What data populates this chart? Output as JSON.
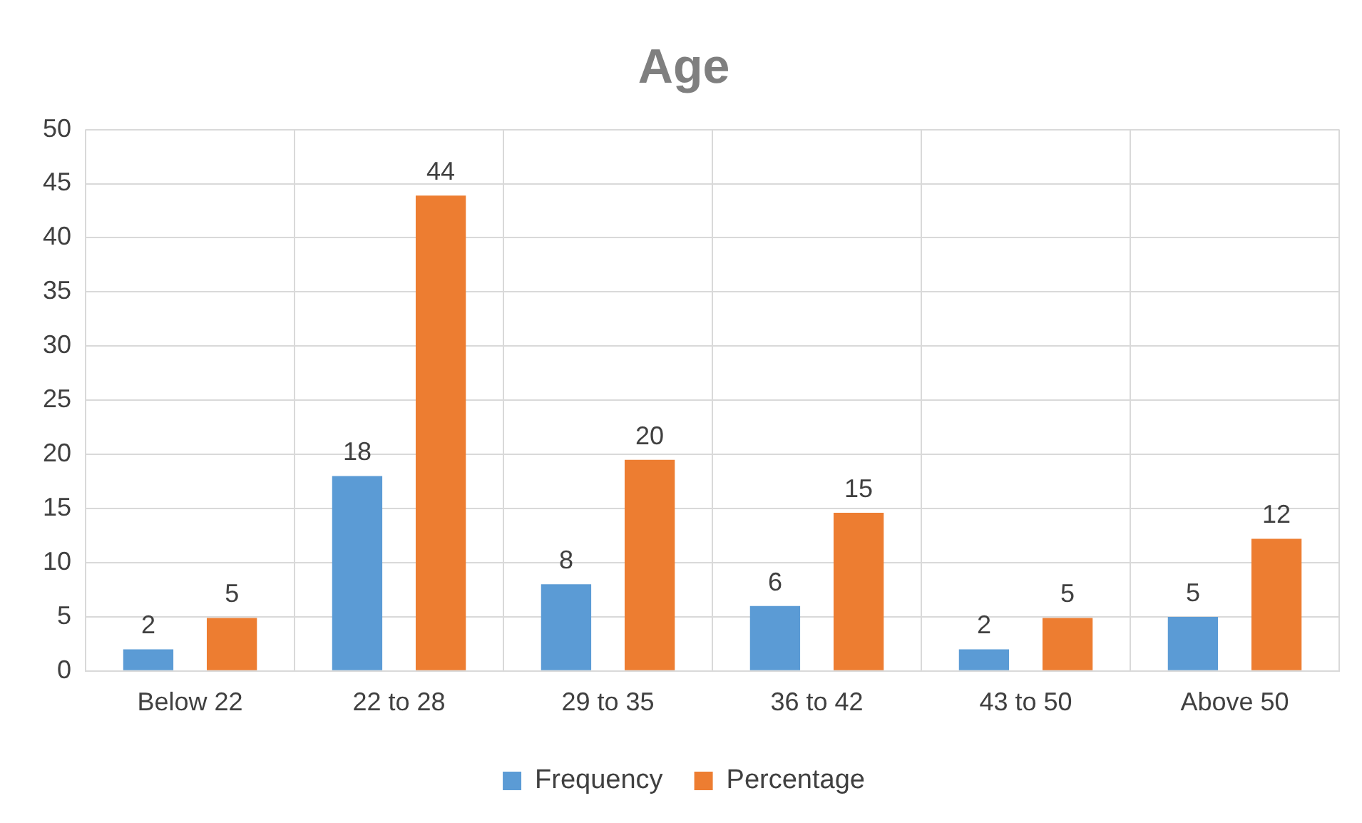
{
  "chart_data": {
    "type": "bar",
    "title": "Age",
    "categories": [
      "Below 22",
      "22 to 28",
      "29 to 35",
      "36 to 42",
      "43 to 50",
      "Above 50"
    ],
    "series": [
      {
        "name": "Frequency",
        "color": "#5b9bd5",
        "values": [
          2,
          18,
          8,
          6,
          2,
          5
        ],
        "value_labels": [
          "2",
          "18",
          "8",
          "6",
          "2",
          "5"
        ]
      },
      {
        "name": "Percentage",
        "color": "#ed7d31",
        "values": [
          4.9,
          43.9,
          19.5,
          14.6,
          4.9,
          12.2
        ],
        "value_labels": [
          "5",
          "44",
          "20",
          "15",
          "5",
          "12"
        ]
      }
    ],
    "ylim": [
      0,
      50
    ],
    "yticks": [
      0,
      5,
      10,
      15,
      20,
      25,
      30,
      35,
      40,
      45,
      50
    ],
    "grid": true,
    "legend": "bottom"
  }
}
